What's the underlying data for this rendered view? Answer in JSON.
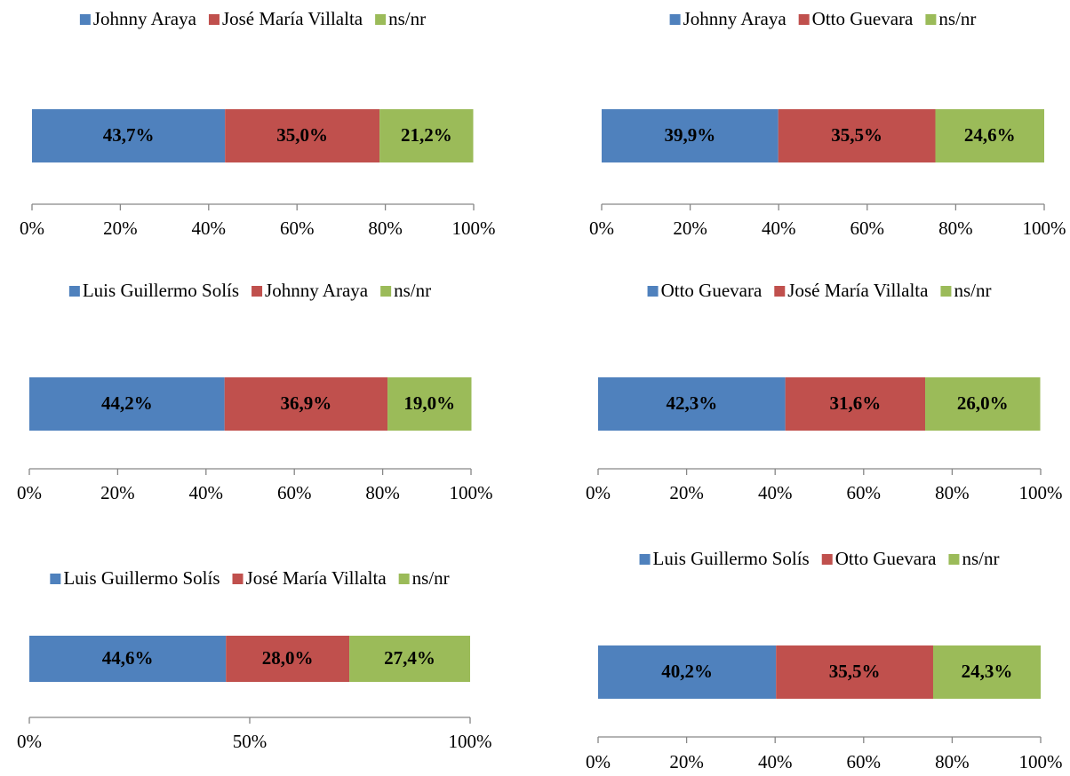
{
  "chart_data": [
    {
      "type": "bar",
      "stacked": true,
      "orientation": "horizontal",
      "legend": "top",
      "series": [
        {
          "name": "Johnny Araya",
          "color": "#4f81bd",
          "values": [
            43.7
          ],
          "value_labels": [
            "43,7%"
          ]
        },
        {
          "name": "José María Villalta",
          "color": "#c0504d",
          "values": [
            35.0
          ],
          "value_labels": [
            "35,0%"
          ]
        },
        {
          "name": "ns/nr",
          "color": "#9bbb59",
          "values": [
            21.2
          ],
          "value_labels": [
            "21,2%"
          ]
        }
      ],
      "xlim": [
        0,
        100
      ],
      "xticks": [
        {
          "value": 0,
          "label": "0%"
        },
        {
          "value": 20,
          "label": "20%"
        },
        {
          "value": 40,
          "label": "40%"
        },
        {
          "value": 60,
          "label": "60%"
        },
        {
          "value": 80,
          "label": "80%"
        },
        {
          "value": 100,
          "label": "100%"
        }
      ]
    },
    {
      "type": "bar",
      "stacked": true,
      "orientation": "horizontal",
      "legend": "top",
      "series": [
        {
          "name": "Johnny Araya",
          "color": "#4f81bd",
          "values": [
            39.9
          ],
          "value_labels": [
            "39,9%"
          ]
        },
        {
          "name": "Otto Guevara",
          "color": "#c0504d",
          "values": [
            35.5
          ],
          "value_labels": [
            "35,5%"
          ]
        },
        {
          "name": "ns/nr",
          "color": "#9bbb59",
          "values": [
            24.6
          ],
          "value_labels": [
            "24,6%"
          ]
        }
      ],
      "xlim": [
        0,
        100
      ],
      "xticks": [
        {
          "value": 0,
          "label": "0%"
        },
        {
          "value": 20,
          "label": "20%"
        },
        {
          "value": 40,
          "label": "40%"
        },
        {
          "value": 60,
          "label": "60%"
        },
        {
          "value": 80,
          "label": "80%"
        },
        {
          "value": 100,
          "label": "100%"
        }
      ]
    },
    {
      "type": "bar",
      "stacked": true,
      "orientation": "horizontal",
      "legend": "top",
      "series": [
        {
          "name": "Luis Guillermo Solís",
          "color": "#4f81bd",
          "values": [
            44.2
          ],
          "value_labels": [
            "44,2%"
          ]
        },
        {
          "name": "Johnny Araya",
          "color": "#c0504d",
          "values": [
            36.9
          ],
          "value_labels": [
            "36,9%"
          ]
        },
        {
          "name": "ns/nr",
          "color": "#9bbb59",
          "values": [
            19.0
          ],
          "value_labels": [
            "19,0%"
          ]
        }
      ],
      "xlim": [
        0,
        100
      ],
      "xticks": [
        {
          "value": 0,
          "label": "0%"
        },
        {
          "value": 20,
          "label": "20%"
        },
        {
          "value": 40,
          "label": "40%"
        },
        {
          "value": 60,
          "label": "60%"
        },
        {
          "value": 80,
          "label": "80%"
        },
        {
          "value": 100,
          "label": "100%"
        }
      ]
    },
    {
      "type": "bar",
      "stacked": true,
      "orientation": "horizontal",
      "legend": "top",
      "series": [
        {
          "name": "Otto Guevara",
          "color": "#4f81bd",
          "values": [
            42.3
          ],
          "value_labels": [
            "42,3%"
          ]
        },
        {
          "name": "José María Villalta",
          "color": "#c0504d",
          "values": [
            31.6
          ],
          "value_labels": [
            "31,6%"
          ]
        },
        {
          "name": "ns/nr",
          "color": "#9bbb59",
          "values": [
            26.0
          ],
          "value_labels": [
            "26,0%"
          ]
        }
      ],
      "xlim": [
        0,
        100
      ],
      "xticks": [
        {
          "value": 0,
          "label": "0%"
        },
        {
          "value": 20,
          "label": "20%"
        },
        {
          "value": 40,
          "label": "40%"
        },
        {
          "value": 60,
          "label": "60%"
        },
        {
          "value": 80,
          "label": "80%"
        },
        {
          "value": 100,
          "label": "100%"
        }
      ]
    },
    {
      "type": "bar",
      "stacked": true,
      "orientation": "horizontal",
      "legend": "top",
      "series": [
        {
          "name": "Luis Guillermo Solís",
          "color": "#4f81bd",
          "values": [
            44.6
          ],
          "value_labels": [
            "44,6%"
          ]
        },
        {
          "name": "José María Villalta",
          "color": "#c0504d",
          "values": [
            28.0
          ],
          "value_labels": [
            "28,0%"
          ]
        },
        {
          "name": "ns/nr",
          "color": "#9bbb59",
          "values": [
            27.4
          ],
          "value_labels": [
            "27,4%"
          ]
        }
      ],
      "xlim": [
        0,
        100
      ],
      "xticks": [
        {
          "value": 0,
          "label": "0%"
        },
        {
          "value": 50,
          "label": "50%"
        },
        {
          "value": 100,
          "label": "100%"
        }
      ]
    },
    {
      "type": "bar",
      "stacked": true,
      "orientation": "horizontal",
      "legend": "top",
      "series": [
        {
          "name": "Luis Guillermo Solís",
          "color": "#4f81bd",
          "values": [
            40.2
          ],
          "value_labels": [
            "40,2%"
          ]
        },
        {
          "name": "Otto Guevara",
          "color": "#c0504d",
          "values": [
            35.5
          ],
          "value_labels": [
            "35,5%"
          ]
        },
        {
          "name": "ns/nr",
          "color": "#9bbb59",
          "values": [
            24.3
          ],
          "value_labels": [
            "24,3%"
          ]
        }
      ],
      "xlim": [
        0,
        100
      ],
      "xticks": [
        {
          "value": 0,
          "label": "0%"
        },
        {
          "value": 20,
          "label": "20%"
        },
        {
          "value": 40,
          "label": "40%"
        },
        {
          "value": 60,
          "label": "60%"
        },
        {
          "value": 80,
          "label": "80%"
        },
        {
          "value": 100,
          "label": "100%"
        }
      ]
    }
  ]
}
